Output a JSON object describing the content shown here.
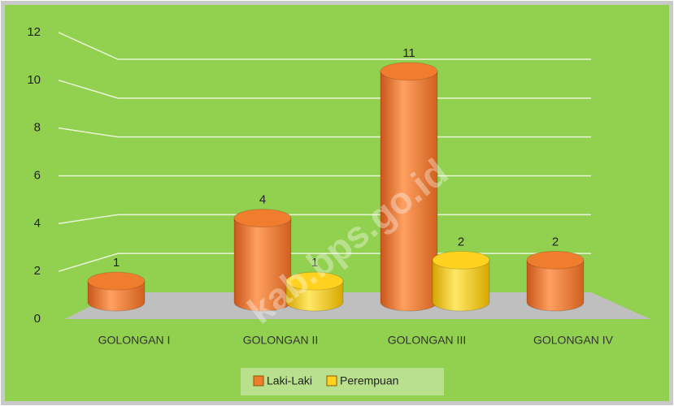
{
  "chart_data": {
    "type": "bar3d",
    "categories": [
      "GOLONGAN I",
      "GOLONGAN II",
      "GOLONGAN III",
      "GOLONGAN IV"
    ],
    "series": [
      {
        "name": "Laki-Laki",
        "color": "#f07d2d",
        "values": [
          1,
          4,
          11,
          2
        ]
      },
      {
        "name": "Perempuan",
        "color": "#ffd21f",
        "values": [
          null,
          1,
          2,
          null
        ]
      }
    ],
    "ylim": [
      0,
      12
    ],
    "yticks": [
      0,
      2,
      4,
      6,
      8,
      10,
      12
    ],
    "grid": true,
    "legend": "bottom",
    "watermark": "kab.bps.go.id"
  }
}
